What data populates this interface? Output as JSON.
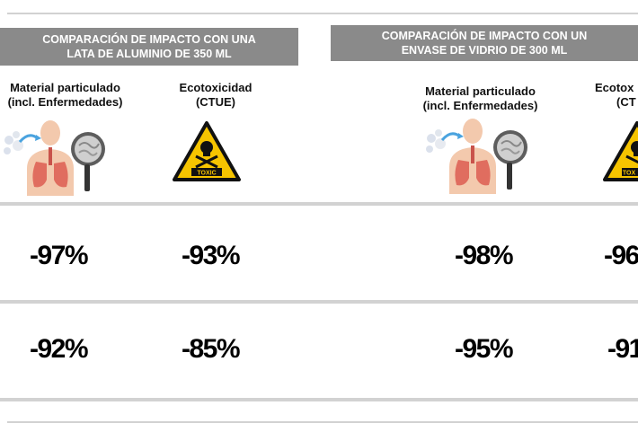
{
  "left_panel": {
    "title_line1": "COMPARACIÓN DE IMPACTO CON UNA",
    "title_line2": "LATA DE ALUMINIO DE 350 ML",
    "col1_line1": "Material particulado",
    "col1_line2": "(incl. Enfermedades)",
    "col2_line1": "Ecotoxicidad",
    "col2_line2": "(CTUE)",
    "row1": [
      "-97%",
      "-93%"
    ],
    "row2": [
      "-92%",
      "-85%"
    ]
  },
  "right_panel": {
    "title_line1": "COMPARACIÓN DE IMPACTO CON UN",
    "title_line2": "ENVASE DE VIDRIO DE 300 ML",
    "col1_line1": "Material particulado",
    "col1_line2": "(incl. Enfermedades)",
    "col2_line1": "Ecotox",
    "col2_line2": "(CT",
    "row1": [
      "-98%",
      "-96"
    ],
    "row2": [
      "-95%",
      "-91"
    ]
  },
  "icons": {
    "lungs": "lungs-magnifier-icon",
    "toxic": "toxic-warning-icon",
    "toxic_label": "TOXIC"
  },
  "colors": {
    "banner": "#8a8a8a",
    "warning_yellow": "#f6c400",
    "lung_red": "#d9534f"
  }
}
